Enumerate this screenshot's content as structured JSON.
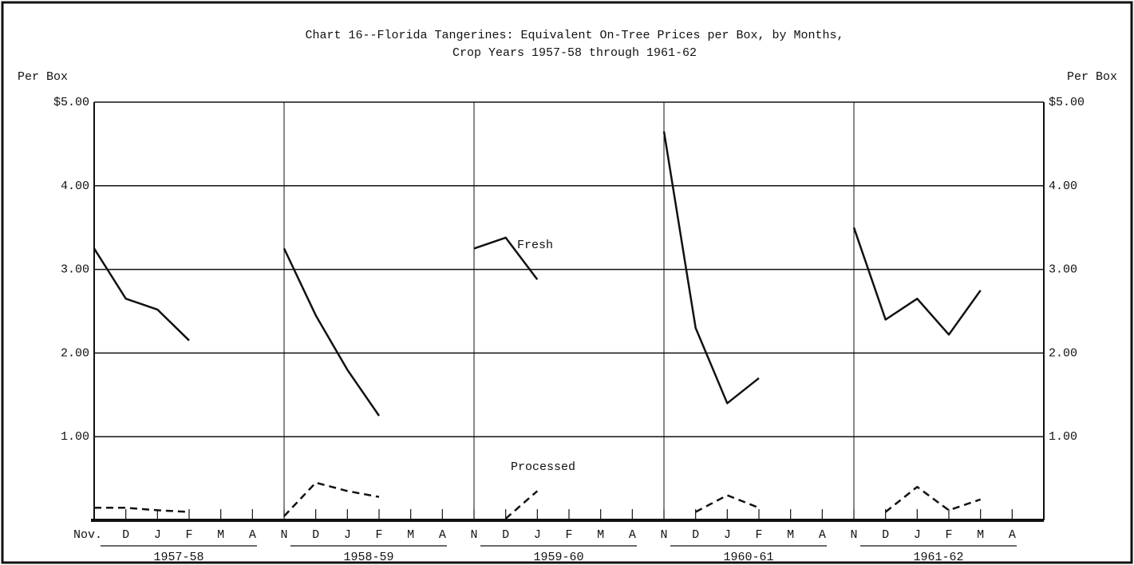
{
  "chart_data": {
    "type": "line",
    "title": "Chart 16--Florida Tangerines:  Equivalent On-Tree Prices per Box, by Months,",
    "subtitle": "Crop Years 1957-58 through 1961-62",
    "y_label": "Per Box",
    "y2_label": "Per Box",
    "categories": [
      "Nov.",
      "D",
      "J",
      "F",
      "M",
      "A",
      "N",
      "D",
      "J",
      "F",
      "M",
      "A",
      "N",
      "D",
      "J",
      "F",
      "M",
      "A",
      "N",
      "D",
      "J",
      "F",
      "M",
      "A",
      "N",
      "D",
      "J",
      "F",
      "M",
      "A"
    ],
    "year_labels": [
      "1957-58",
      "1958-59",
      "1959-60",
      "1960-61",
      "1961-62"
    ],
    "series": [
      {
        "name": "Fresh",
        "color": "#111111",
        "dashed": false,
        "values": [
          3.25,
          2.65,
          2.52,
          2.15,
          null,
          null,
          3.25,
          2.45,
          1.8,
          1.25,
          null,
          null,
          3.25,
          3.38,
          2.88,
          null,
          null,
          null,
          4.65,
          2.3,
          1.4,
          1.7,
          null,
          null,
          3.5,
          2.4,
          2.65,
          2.22,
          2.75,
          null
        ]
      },
      {
        "name": "Processed",
        "color": "#111111",
        "dashed": true,
        "values": [
          0.15,
          0.15,
          0.12,
          0.1,
          null,
          null,
          0.05,
          0.45,
          0.35,
          0.28,
          null,
          null,
          null,
          0.02,
          0.35,
          null,
          null,
          null,
          null,
          0.1,
          0.3,
          0.15,
          null,
          null,
          null,
          0.1,
          0.4,
          0.12,
          0.25,
          null
        ]
      }
    ],
    "ylim": [
      0,
      5
    ],
    "yticks": [
      {
        "value": 1,
        "label": "1.00"
      },
      {
        "value": 2,
        "label": "2.00"
      },
      {
        "value": 3,
        "label": "3.00"
      },
      {
        "value": 4,
        "label": "4.00"
      },
      {
        "value": 5,
        "label": "$5.00"
      }
    ],
    "grid": true
  }
}
